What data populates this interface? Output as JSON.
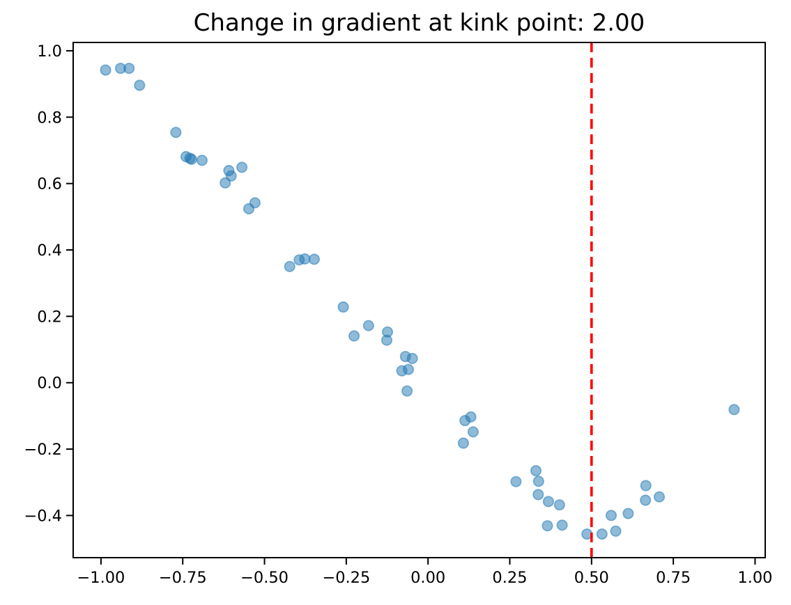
{
  "figure": {
    "background": "#ffffff",
    "plot_background": "#ffffff",
    "spine_color": "#000000",
    "tick_color": "#000000"
  },
  "chart_data": {
    "type": "scatter",
    "title": "Change in gradient at kink point: 2.00",
    "xlabel": "",
    "ylabel": "",
    "grid": false,
    "legend": "none",
    "xlim": [
      -1.085,
      1.031
    ],
    "ylim": [
      -0.527,
      1.025
    ],
    "x_ticks": {
      "values": [
        -1.0,
        -0.75,
        -0.5,
        -0.25,
        0.0,
        0.25,
        0.5,
        0.75,
        1.0
      ],
      "labels": [
        "−1.00",
        "−0.75",
        "−0.50",
        "−0.25",
        "0.00",
        "0.25",
        "0.50",
        "0.75",
        "1.00"
      ]
    },
    "y_ticks": {
      "values": [
        1.0,
        0.8,
        0.6,
        0.4,
        0.2,
        0.0,
        -0.2,
        -0.4
      ],
      "labels": [
        "1.0",
        "0.8",
        "0.6",
        "0.4",
        "0.2",
        "0.0",
        "−0.2",
        "−0.4"
      ]
    },
    "vline": {
      "x": 0.5,
      "color": "#ff0000",
      "linestyle": "dashed"
    },
    "series": [
      {
        "name": "scatter-points",
        "marker": "circle",
        "marker_color": "#1f77b4",
        "marker_alpha": 0.5,
        "points": [
          [
            -0.986,
            0.942
          ],
          [
            -0.94,
            0.947
          ],
          [
            -0.914,
            0.947
          ],
          [
            -0.882,
            0.896
          ],
          [
            -0.771,
            0.754
          ],
          [
            -0.74,
            0.681
          ],
          [
            -0.728,
            0.676
          ],
          [
            -0.723,
            0.673
          ],
          [
            -0.691,
            0.67
          ],
          [
            -0.62,
            0.602
          ],
          [
            -0.609,
            0.639
          ],
          [
            -0.602,
            0.623
          ],
          [
            -0.569,
            0.649
          ],
          [
            -0.548,
            0.524
          ],
          [
            -0.529,
            0.542
          ],
          [
            -0.423,
            0.35
          ],
          [
            -0.394,
            0.37
          ],
          [
            -0.377,
            0.373
          ],
          [
            -0.348,
            0.372
          ],
          [
            -0.259,
            0.228
          ],
          [
            -0.226,
            0.141
          ],
          [
            -0.182,
            0.172
          ],
          [
            -0.126,
            0.128
          ],
          [
            -0.124,
            0.153
          ],
          [
            -0.08,
            0.036
          ],
          [
            -0.069,
            0.079
          ],
          [
            -0.064,
            -0.025
          ],
          [
            -0.06,
            0.04
          ],
          [
            -0.048,
            0.073
          ],
          [
            0.108,
            -0.182
          ],
          [
            0.113,
            -0.114
          ],
          [
            0.131,
            -0.103
          ],
          [
            0.138,
            -0.148
          ],
          [
            0.269,
            -0.298
          ],
          [
            0.33,
            -0.265
          ],
          [
            0.338,
            -0.297
          ],
          [
            0.337,
            -0.337
          ],
          [
            0.368,
            -0.358
          ],
          [
            0.402,
            -0.368
          ],
          [
            0.365,
            -0.431
          ],
          [
            0.41,
            -0.429
          ],
          [
            0.486,
            -0.456
          ],
          [
            0.532,
            -0.456
          ],
          [
            0.574,
            -0.447
          ],
          [
            0.56,
            -0.4
          ],
          [
            0.612,
            -0.394
          ],
          [
            0.665,
            -0.354
          ],
          [
            0.666,
            -0.31
          ],
          [
            0.707,
            -0.344
          ],
          [
            0.936,
            -0.081
          ]
        ]
      }
    ]
  }
}
